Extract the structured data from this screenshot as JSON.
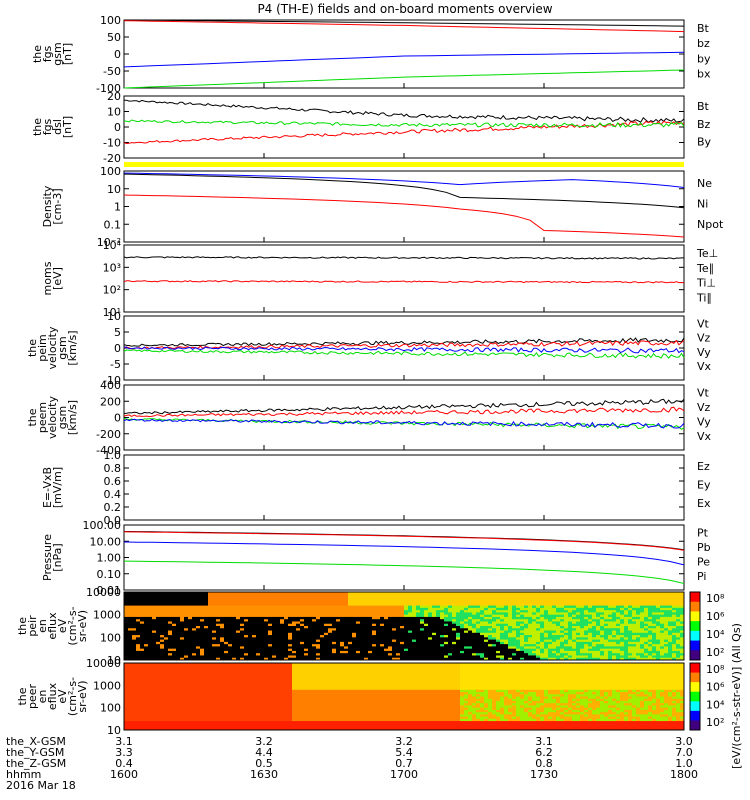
{
  "title": "P4 (TH-E) fields and on-board moments overview",
  "colors": {
    "black": "#000000",
    "red": "#ff0000",
    "green": "#00dd00",
    "blue": "#0000ff",
    "yellow": "#ffff00"
  },
  "chart_data": [
    {
      "id": "fgs_gsm",
      "type": "line",
      "ylabel": [
        "the",
        "fgs",
        "gsm",
        "[nT]"
      ],
      "yticks": [
        "100",
        "50",
        "0",
        "-50",
        "-100"
      ],
      "yrange": [
        -100,
        100
      ],
      "legend": [
        {
          "name": "Bt",
          "color": "black"
        },
        {
          "name": "bz",
          "color": "red"
        },
        {
          "name": "by",
          "color": "green"
        },
        {
          "name": "bx",
          "color": "blue"
        }
      ],
      "series": [
        {
          "name": "Bt",
          "points": [
            [
              0,
              100
            ],
            [
              0.5,
              92
            ],
            [
              1,
              82
            ]
          ]
        },
        {
          "name": "bz",
          "points": [
            [
              0,
              98
            ],
            [
              0.5,
              84
            ],
            [
              1,
              66
            ]
          ]
        },
        {
          "name": "by",
          "points": [
            [
              0,
              -100
            ],
            [
              0.5,
              -68
            ],
            [
              1,
              -47
            ]
          ]
        },
        {
          "name": "bx",
          "points": [
            [
              0,
              -38
            ],
            [
              0.5,
              -6
            ],
            [
              1,
              5
            ]
          ]
        }
      ]
    },
    {
      "id": "fgs_dsl",
      "type": "line",
      "ylabel": [
        "the",
        "fgs",
        "dsl",
        "[nT]"
      ],
      "yticks": [
        "20",
        "10",
        "0",
        "-10",
        "-20"
      ],
      "yrange": [
        -25,
        20
      ],
      "legend": [
        {
          "name": "Bt",
          "color": "black"
        },
        {
          "name": "Bz",
          "color": "red"
        },
        {
          "name": "By",
          "color": "green"
        }
      ],
      "series": [
        {
          "name": "Bt",
          "points": [
            [
              0,
              17
            ],
            [
              0.5,
              6
            ],
            [
              1,
              2
            ]
          ]
        },
        {
          "name": "Bz",
          "points": [
            [
              0,
              -14
            ],
            [
              0.5,
              -6
            ],
            [
              1,
              1
            ]
          ]
        },
        {
          "name": "By",
          "points": [
            [
              0,
              2
            ],
            [
              0.5,
              -1
            ],
            [
              1,
              -1
            ]
          ]
        }
      ]
    },
    {
      "id": "density",
      "type": "line",
      "ylog": true,
      "ylabel": [
        "Density",
        "[cm-3]"
      ],
      "yticks": [
        "100",
        "10",
        "1",
        "0.1",
        "10⁻²"
      ],
      "yrange": [
        0.01,
        200
      ],
      "legend": [
        {
          "name": "Ne",
          "color": "red"
        },
        {
          "name": "Ni",
          "color": "black"
        },
        {
          "name": "Npot",
          "color": "blue"
        }
      ],
      "series": [
        {
          "name": "Npot",
          "points": [
            [
              0,
              150
            ],
            [
              0.6,
              30
            ],
            [
              0.8,
              60
            ],
            [
              1,
              20
            ]
          ]
        },
        {
          "name": "Ni",
          "points": [
            [
              0,
              130
            ],
            [
              0.6,
              5
            ],
            [
              1,
              1.2
            ]
          ]
        },
        {
          "name": "Ne",
          "points": [
            [
              0,
              7
            ],
            [
              0.6,
              1
            ],
            [
              0.75,
              0.05
            ],
            [
              1,
              0.02
            ]
          ]
        }
      ]
    },
    {
      "id": "moms",
      "type": "line",
      "ylog": true,
      "ylabel": [
        "moms",
        "[eV]"
      ],
      "yticks": [
        "10⁴",
        "10³",
        "10²",
        "10¹"
      ],
      "yrange": [
        10,
        30000
      ],
      "legend": [
        {
          "name": "Te⊥",
          "color": "red"
        },
        {
          "name": "Te∥",
          "color": "black"
        },
        {
          "name": "Ti⊥",
          "color": "red"
        },
        {
          "name": "Ti∥",
          "color": "green"
        }
      ],
      "series": [
        {
          "name": "Te",
          "points": [
            [
              0,
              7000
            ],
            [
              1,
              6000
            ]
          ]
        },
        {
          "name": "Ti",
          "points": [
            [
              0,
              400
            ],
            [
              1,
              350
            ]
          ]
        }
      ]
    },
    {
      "id": "peim_vel",
      "type": "line",
      "ylabel": [
        "the",
        "peim",
        "velocity",
        "gsm",
        "[km/s]"
      ],
      "yticks": [
        "10",
        "5",
        "0",
        "-5",
        "-10"
      ],
      "yrange": [
        -12,
        12
      ],
      "legend": [
        {
          "name": "Vt",
          "color": "black"
        },
        {
          "name": "Vz",
          "color": "red"
        },
        {
          "name": "Vy",
          "color": "green"
        },
        {
          "name": "Vx",
          "color": "blue"
        }
      ],
      "series": [
        {
          "name": "Vt",
          "points": [
            [
              0,
              1
            ],
            [
              1,
              3
            ]
          ]
        },
        {
          "name": "Vz",
          "points": [
            [
              0,
              0
            ],
            [
              1,
              2
            ]
          ]
        },
        {
          "name": "Vy",
          "points": [
            [
              0,
              -1
            ],
            [
              1,
              -3
            ]
          ]
        },
        {
          "name": "Vx",
          "points": [
            [
              0,
              0
            ],
            [
              1,
              -1
            ]
          ]
        }
      ]
    },
    {
      "id": "peem_vel",
      "type": "line",
      "ylabel": [
        "the",
        "peem",
        "velocity",
        "gsm",
        "[km/s]"
      ],
      "yticks": [
        "400",
        "200",
        "0",
        "-200",
        "-400"
      ],
      "yrange": [
        -400,
        400
      ],
      "legend": [
        {
          "name": "Vt",
          "color": "black"
        },
        {
          "name": "Vz",
          "color": "red"
        },
        {
          "name": "Vy",
          "color": "green"
        },
        {
          "name": "Vx",
          "color": "blue"
        }
      ],
      "series": [
        {
          "name": "Vt",
          "points": [
            [
              0,
              50
            ],
            [
              1,
              200
            ]
          ]
        },
        {
          "name": "Vz",
          "points": [
            [
              0,
              20
            ],
            [
              1,
              100
            ]
          ]
        },
        {
          "name": "Vy",
          "points": [
            [
              0,
              -20
            ],
            [
              1,
              -120
            ]
          ]
        },
        {
          "name": "Vx",
          "points": [
            [
              0,
              -30
            ],
            [
              1,
              -100
            ]
          ]
        }
      ]
    },
    {
      "id": "efield",
      "type": "line",
      "ylabel": [
        "E=-VxB",
        "[mV/m]"
      ],
      "yticks": [
        "1.0",
        "0.8",
        "0.6",
        "0.4",
        "0.2",
        "0.0"
      ],
      "yrange": [
        0,
        1
      ],
      "legend": [
        {
          "name": "Ez",
          "color": "red"
        },
        {
          "name": "Ey",
          "color": "green"
        },
        {
          "name": "Ex",
          "color": "blue"
        }
      ],
      "series": []
    },
    {
      "id": "pressure",
      "type": "line",
      "ylog": true,
      "ylabel": [
        "Pressure",
        "[nPa]"
      ],
      "yticks": [
        "100.00",
        "10.00",
        "1.00",
        "0.10",
        "0.01"
      ],
      "yrange": [
        0.01,
        100
      ],
      "legend": [
        {
          "name": "Pt",
          "color": "black"
        },
        {
          "name": "Pb",
          "color": "red"
        },
        {
          "name": "Pe",
          "color": "green"
        },
        {
          "name": "Pi",
          "color": "blue"
        }
      ],
      "series": [
        {
          "name": "Pt",
          "points": [
            [
              0,
              40
            ],
            [
              1,
              3
            ]
          ]
        },
        {
          "name": "Pb",
          "points": [
            [
              0,
              38
            ],
            [
              1,
              2.8
            ]
          ]
        },
        {
          "name": "Pi",
          "points": [
            [
              0,
              9
            ],
            [
              1,
              0.35
            ]
          ]
        },
        {
          "name": "Pe",
          "points": [
            [
              0,
              0.6
            ],
            [
              1,
              0.025
            ]
          ]
        }
      ]
    },
    {
      "id": "peir_eflux",
      "type": "heatmap",
      "ylabel": [
        "the",
        "peir",
        "en",
        "eflux",
        "eV",
        "(cm²-s-",
        "sr-eV)"
      ],
      "yticks": [
        "10000",
        "1000",
        "100",
        "10"
      ],
      "cbar_label": "[eV/(cm²-s-str-eV)] (All Qs)",
      "cbar_ticks": [
        "10⁸",
        "10⁶",
        "10⁴",
        "10²"
      ]
    },
    {
      "id": "peer_eflux",
      "type": "heatmap",
      "ylabel": [
        "the",
        "peer",
        "en",
        "eflux",
        "eV",
        "(cm²-s-",
        "sr-eV)"
      ],
      "yticks": [
        "10000",
        "1000",
        "100",
        "10"
      ],
      "cbar_label": "[eV/(cm²-s-str-eV)] (All Qs)",
      "cbar_ticks": [
        "10⁸",
        "10⁶",
        "10⁴",
        "10²"
      ]
    }
  ],
  "xaxis": {
    "rows": [
      {
        "label": "the_X-GSM",
        "values": [
          "3.1",
          "3.2",
          "3.2",
          "3.1",
          "3.0"
        ]
      },
      {
        "label": "the_Y-GSM",
        "values": [
          "3.3",
          "4.4",
          "5.4",
          "6.2",
          "7.0"
        ]
      },
      {
        "label": "the_Z-GSM",
        "values": [
          "0.4",
          "0.5",
          "0.7",
          "0.8",
          "1.0"
        ]
      },
      {
        "label": "hhmm",
        "values": [
          "1600",
          "1630",
          "1700",
          "1730",
          "1800"
        ]
      }
    ],
    "date": "2016 Mar 18"
  }
}
